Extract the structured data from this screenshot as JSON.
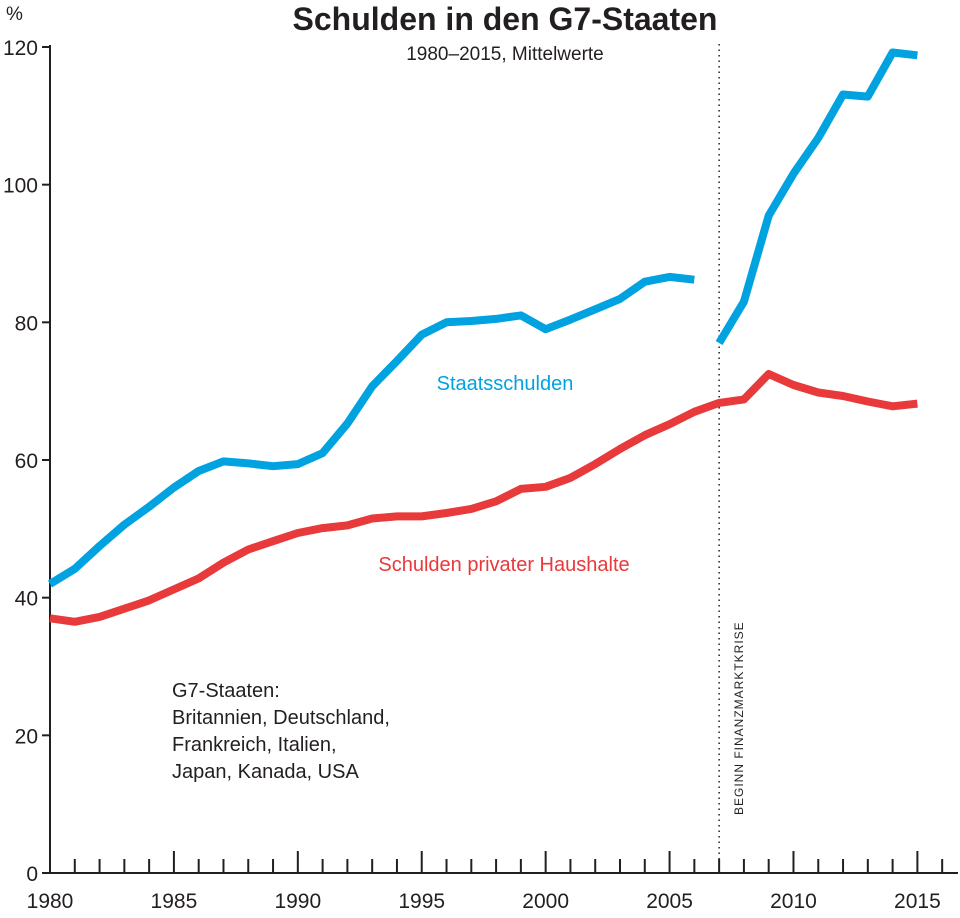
{
  "chart_data": {
    "type": "line",
    "title": "Schulden in den G7-Staaten",
    "subtitle": "1980–2015, Mittelwerte",
    "ylabel": "%",
    "xlim": [
      1980,
      2016.8
    ],
    "ylim": [
      0,
      120
    ],
    "yticks": [
      0,
      20,
      40,
      60,
      80,
      100,
      120
    ],
    "xticks_labeled": [
      1980,
      1985,
      1990,
      1995,
      2000,
      2005,
      2010,
      2015
    ],
    "grid": false,
    "legend": "inline",
    "series": [
      {
        "name": "Staatsschulden",
        "color": "#00a3e0",
        "segments": [
          {
            "x": [
              1980,
              1981,
              1982,
              1983,
              1984,
              1985,
              1986,
              1987,
              1988,
              1989,
              1990,
              1991,
              1992,
              1993,
              1994,
              1995,
              1996,
              1997,
              1998,
              1999,
              2000,
              2001,
              2002,
              2003,
              2004,
              2005,
              2006
            ],
            "y": [
              42,
              44.2,
              47.5,
              50.6,
              53.2,
              56,
              58.4,
              59.8,
              59.5,
              59.1,
              59.4,
              61,
              65.3,
              70.7,
              74.4,
              78.2,
              80,
              80.2,
              80.5,
              81,
              79,
              80.4,
              81.9,
              83.4,
              85.9,
              86.6,
              86.2
            ]
          },
          {
            "x": [
              2007,
              2008,
              2009,
              2010,
              2011,
              2012,
              2013,
              2014,
              2015
            ],
            "y": [
              77,
              83,
              95.5,
              101.6,
              106.8,
              113.1,
              112.8,
              119.2,
              118.8
            ]
          }
        ]
      },
      {
        "name": "Schulden privater Haushalte",
        "color": "#e8393b",
        "segments": [
          {
            "x": [
              1980,
              1981,
              1982,
              1983,
              1984,
              1985,
              1986,
              1987,
              1988,
              1989,
              1990,
              1991,
              1992,
              1993,
              1994,
              1995,
              1996,
              1997,
              1998,
              1999,
              2000,
              2001,
              2002,
              2003,
              2004,
              2005,
              2006,
              2007,
              2008,
              2009,
              2010,
              2011,
              2012,
              2013,
              2014,
              2015
            ],
            "y": [
              37,
              36.5,
              37.2,
              38.4,
              39.6,
              41.2,
              42.8,
              45.1,
              47,
              48.2,
              49.4,
              50.1,
              50.5,
              51.5,
              51.8,
              51.8,
              52.3,
              52.9,
              54,
              55.8,
              56.1,
              57.4,
              59.4,
              61.6,
              63.6,
              65.2,
              67,
              68.3,
              68.8,
              72.5,
              70.9,
              69.8,
              69.3,
              68.5,
              67.8,
              68.2
            ]
          }
        ]
      }
    ],
    "annotations": [
      {
        "text": "Staatsschulden",
        "color": "#00a3e0"
      },
      {
        "text": "Schulden privater Haushalte",
        "color": "#e8393b"
      },
      {
        "text": "BEGINN FINANZMARKTKRISE",
        "x": 2007
      }
    ],
    "note_lines": [
      "G7-Staaten:",
      "Britannien, Deutschland,",
      "Frankreich, Italien,",
      "Japan, Kanada, USA"
    ]
  }
}
